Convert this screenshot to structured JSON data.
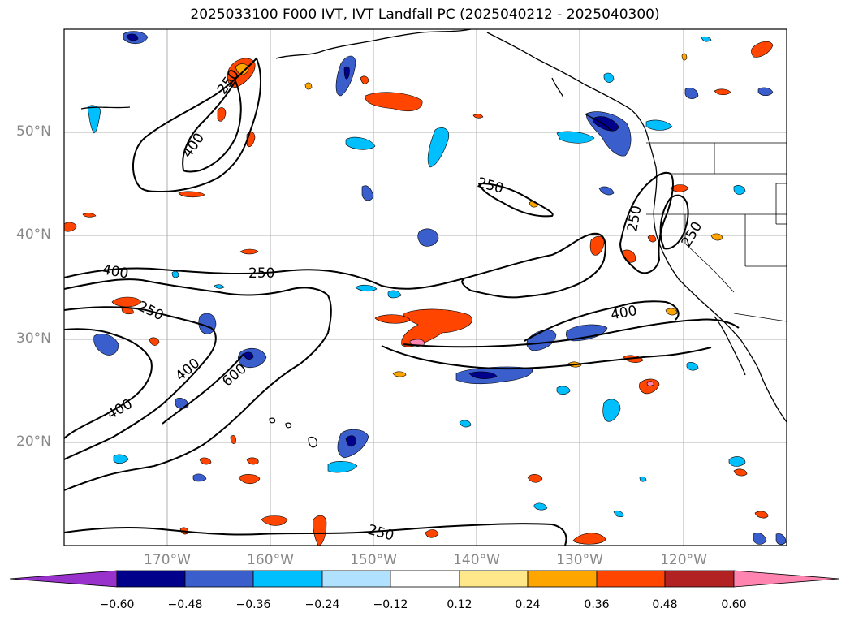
{
  "title": "2025033100 F000 IVT, IVT Landfall PC (2025040212 - 2025040300)",
  "lat_labels": [
    "50°N",
    "40°N",
    "30°N",
    "20°N"
  ],
  "lon_labels": [
    "170°W",
    "160°W",
    "150°W",
    "140°W",
    "130°W",
    "120°W"
  ],
  "contour_labels": [
    "250",
    "400",
    "600"
  ],
  "colorbar": {
    "ticks": [
      "−0.60",
      "−0.48",
      "−0.36",
      "−0.24",
      "−0.12",
      "0.12",
      "0.24",
      "0.36",
      "0.48",
      "0.60"
    ],
    "colors": [
      "#9932cc",
      "#00008b",
      "#3a5fcd",
      "#00bfff",
      "#b0e2ff",
      "#ffffff",
      "#ffe88a",
      "#ffa500",
      "#ff4500",
      "#b22222",
      "#ff85b0"
    ]
  },
  "map_extent": {
    "lon": [
      -180,
      -110
    ],
    "lat": [
      10,
      60
    ]
  }
}
